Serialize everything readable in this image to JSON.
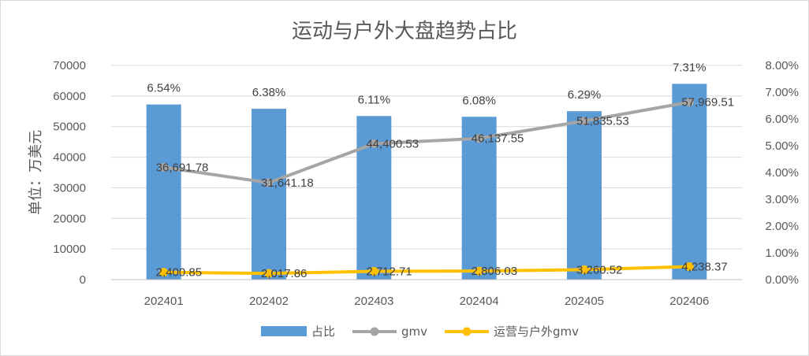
{
  "chart_data": {
    "type": "bar",
    "title": "运动与户外大盘趋势占比",
    "ylabel": "单位：万美元",
    "categories": [
      "202401",
      "202402",
      "202403",
      "202404",
      "202405",
      "202406"
    ],
    "y_left": {
      "min": 0,
      "max": 70000,
      "step": 10000,
      "ticks": [
        "0",
        "10000",
        "20000",
        "30000",
        "40000",
        "50000",
        "60000",
        "70000"
      ]
    },
    "y_right": {
      "min": 0,
      "max": 0.08,
      "step": 0.01,
      "ticks": [
        "0.00%",
        "1.00%",
        "2.00%",
        "3.00%",
        "4.00%",
        "5.00%",
        "6.00%",
        "7.00%",
        "8.00%"
      ]
    },
    "series": [
      {
        "name": "占比",
        "type": "bar",
        "axis": "right",
        "color": "#5b9bd5",
        "values": [
          0.0654,
          0.0638,
          0.0611,
          0.0608,
          0.0629,
          0.0731
        ],
        "labels": [
          "6.54%",
          "6.38%",
          "6.11%",
          "6.08%",
          "6.29%",
          "7.31%"
        ]
      },
      {
        "name": "gmv",
        "type": "line",
        "axis": "left",
        "color": "#a5a5a5",
        "values": [
          36691.78,
          31641.18,
          44400.53,
          46137.55,
          51835.53,
          57969.51
        ],
        "labels": [
          "36,691.78",
          "31,641.18",
          "44,400.53",
          "46,137.55",
          "51,835.53",
          "57,969.51"
        ]
      },
      {
        "name": "运营与户外gmv",
        "type": "line",
        "axis": "left",
        "color": "#ffc000",
        "values": [
          2400.85,
          2017.86,
          2712.71,
          2806.03,
          3260.52,
          4238.37
        ],
        "labels": [
          "2,400.85",
          "2,017.86",
          "2,712.71",
          "2,806.03",
          "3,260.52",
          "4,238.37"
        ]
      }
    ],
    "grid": true,
    "legend": "bottom"
  }
}
